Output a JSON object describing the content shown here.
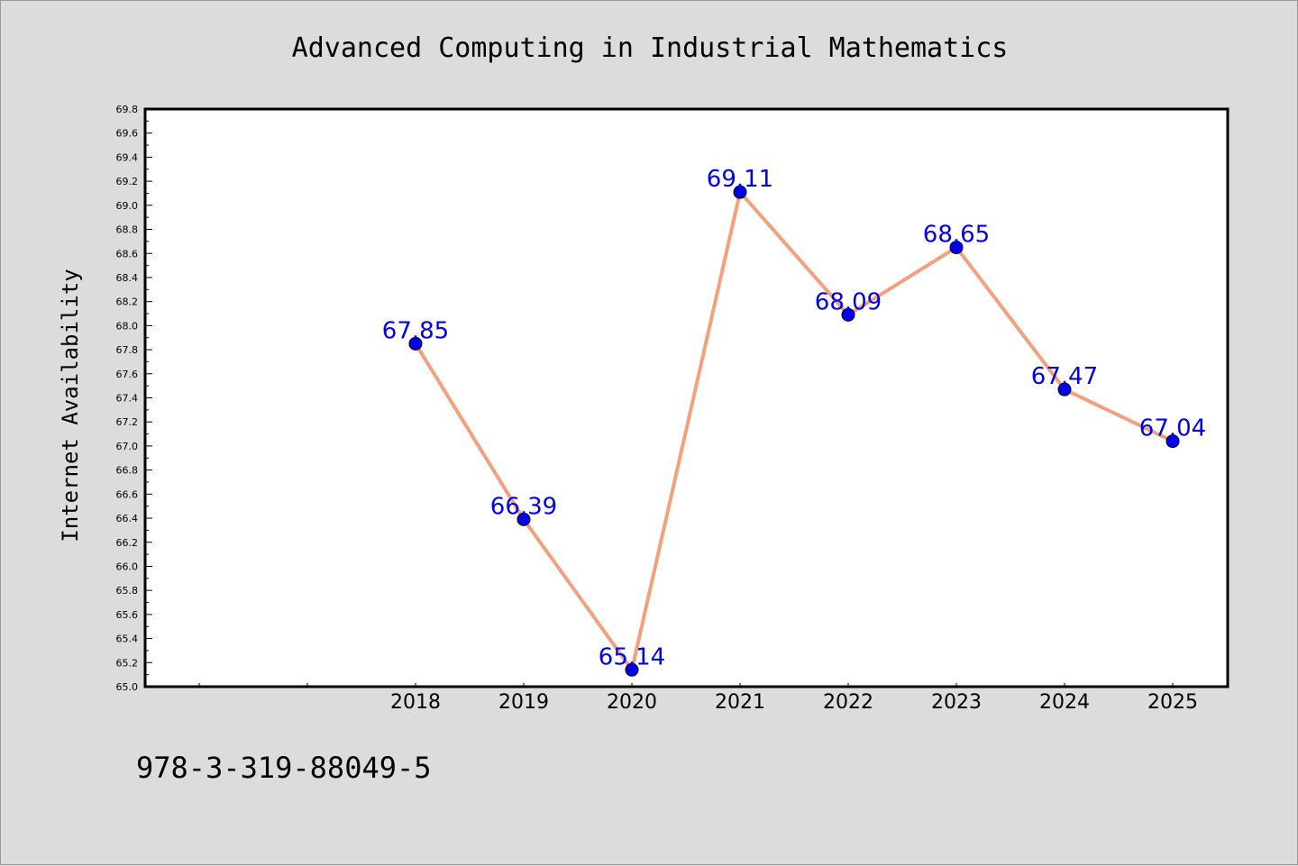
{
  "chart_data": {
    "type": "line",
    "title": "Advanced Computing in Industrial Mathematics",
    "ylabel": "Internet Availability",
    "xlabel": "",
    "categories": [
      "2018",
      "2019",
      "2020",
      "2021",
      "2022",
      "2023",
      "2024",
      "2025"
    ],
    "series": [
      {
        "values": [
          67.85,
          66.39,
          65.14,
          69.11,
          68.09,
          68.65,
          67.47,
          67.04
        ]
      }
    ],
    "ylim": [
      65.0,
      69.8
    ],
    "yticks": [
      "65.0",
      "65.2",
      "65.4",
      "65.6",
      "65.8",
      "66.0",
      "66.2",
      "66.4",
      "66.6",
      "66.8",
      "67.0",
      "67.2",
      "67.4",
      "67.6",
      "67.8",
      "68.0",
      "68.2",
      "68.4",
      "68.6",
      "68.8",
      "69.0",
      "69.2",
      "69.4",
      "69.6",
      "69.8"
    ],
    "data_labels": [
      "67.85",
      "66.39",
      "65.14",
      "69.11",
      "68.09",
      "68.65",
      "67.47",
      "67.04"
    ],
    "grid": false,
    "legend": "none",
    "colors": {
      "line": "#f4a07c",
      "marker": "#0000ee",
      "label": "#0000ee",
      "background": "#dcdcdc",
      "plot_background": "#ffffff"
    }
  },
  "footer": {
    "isbn": "978-3-319-88049-5"
  }
}
